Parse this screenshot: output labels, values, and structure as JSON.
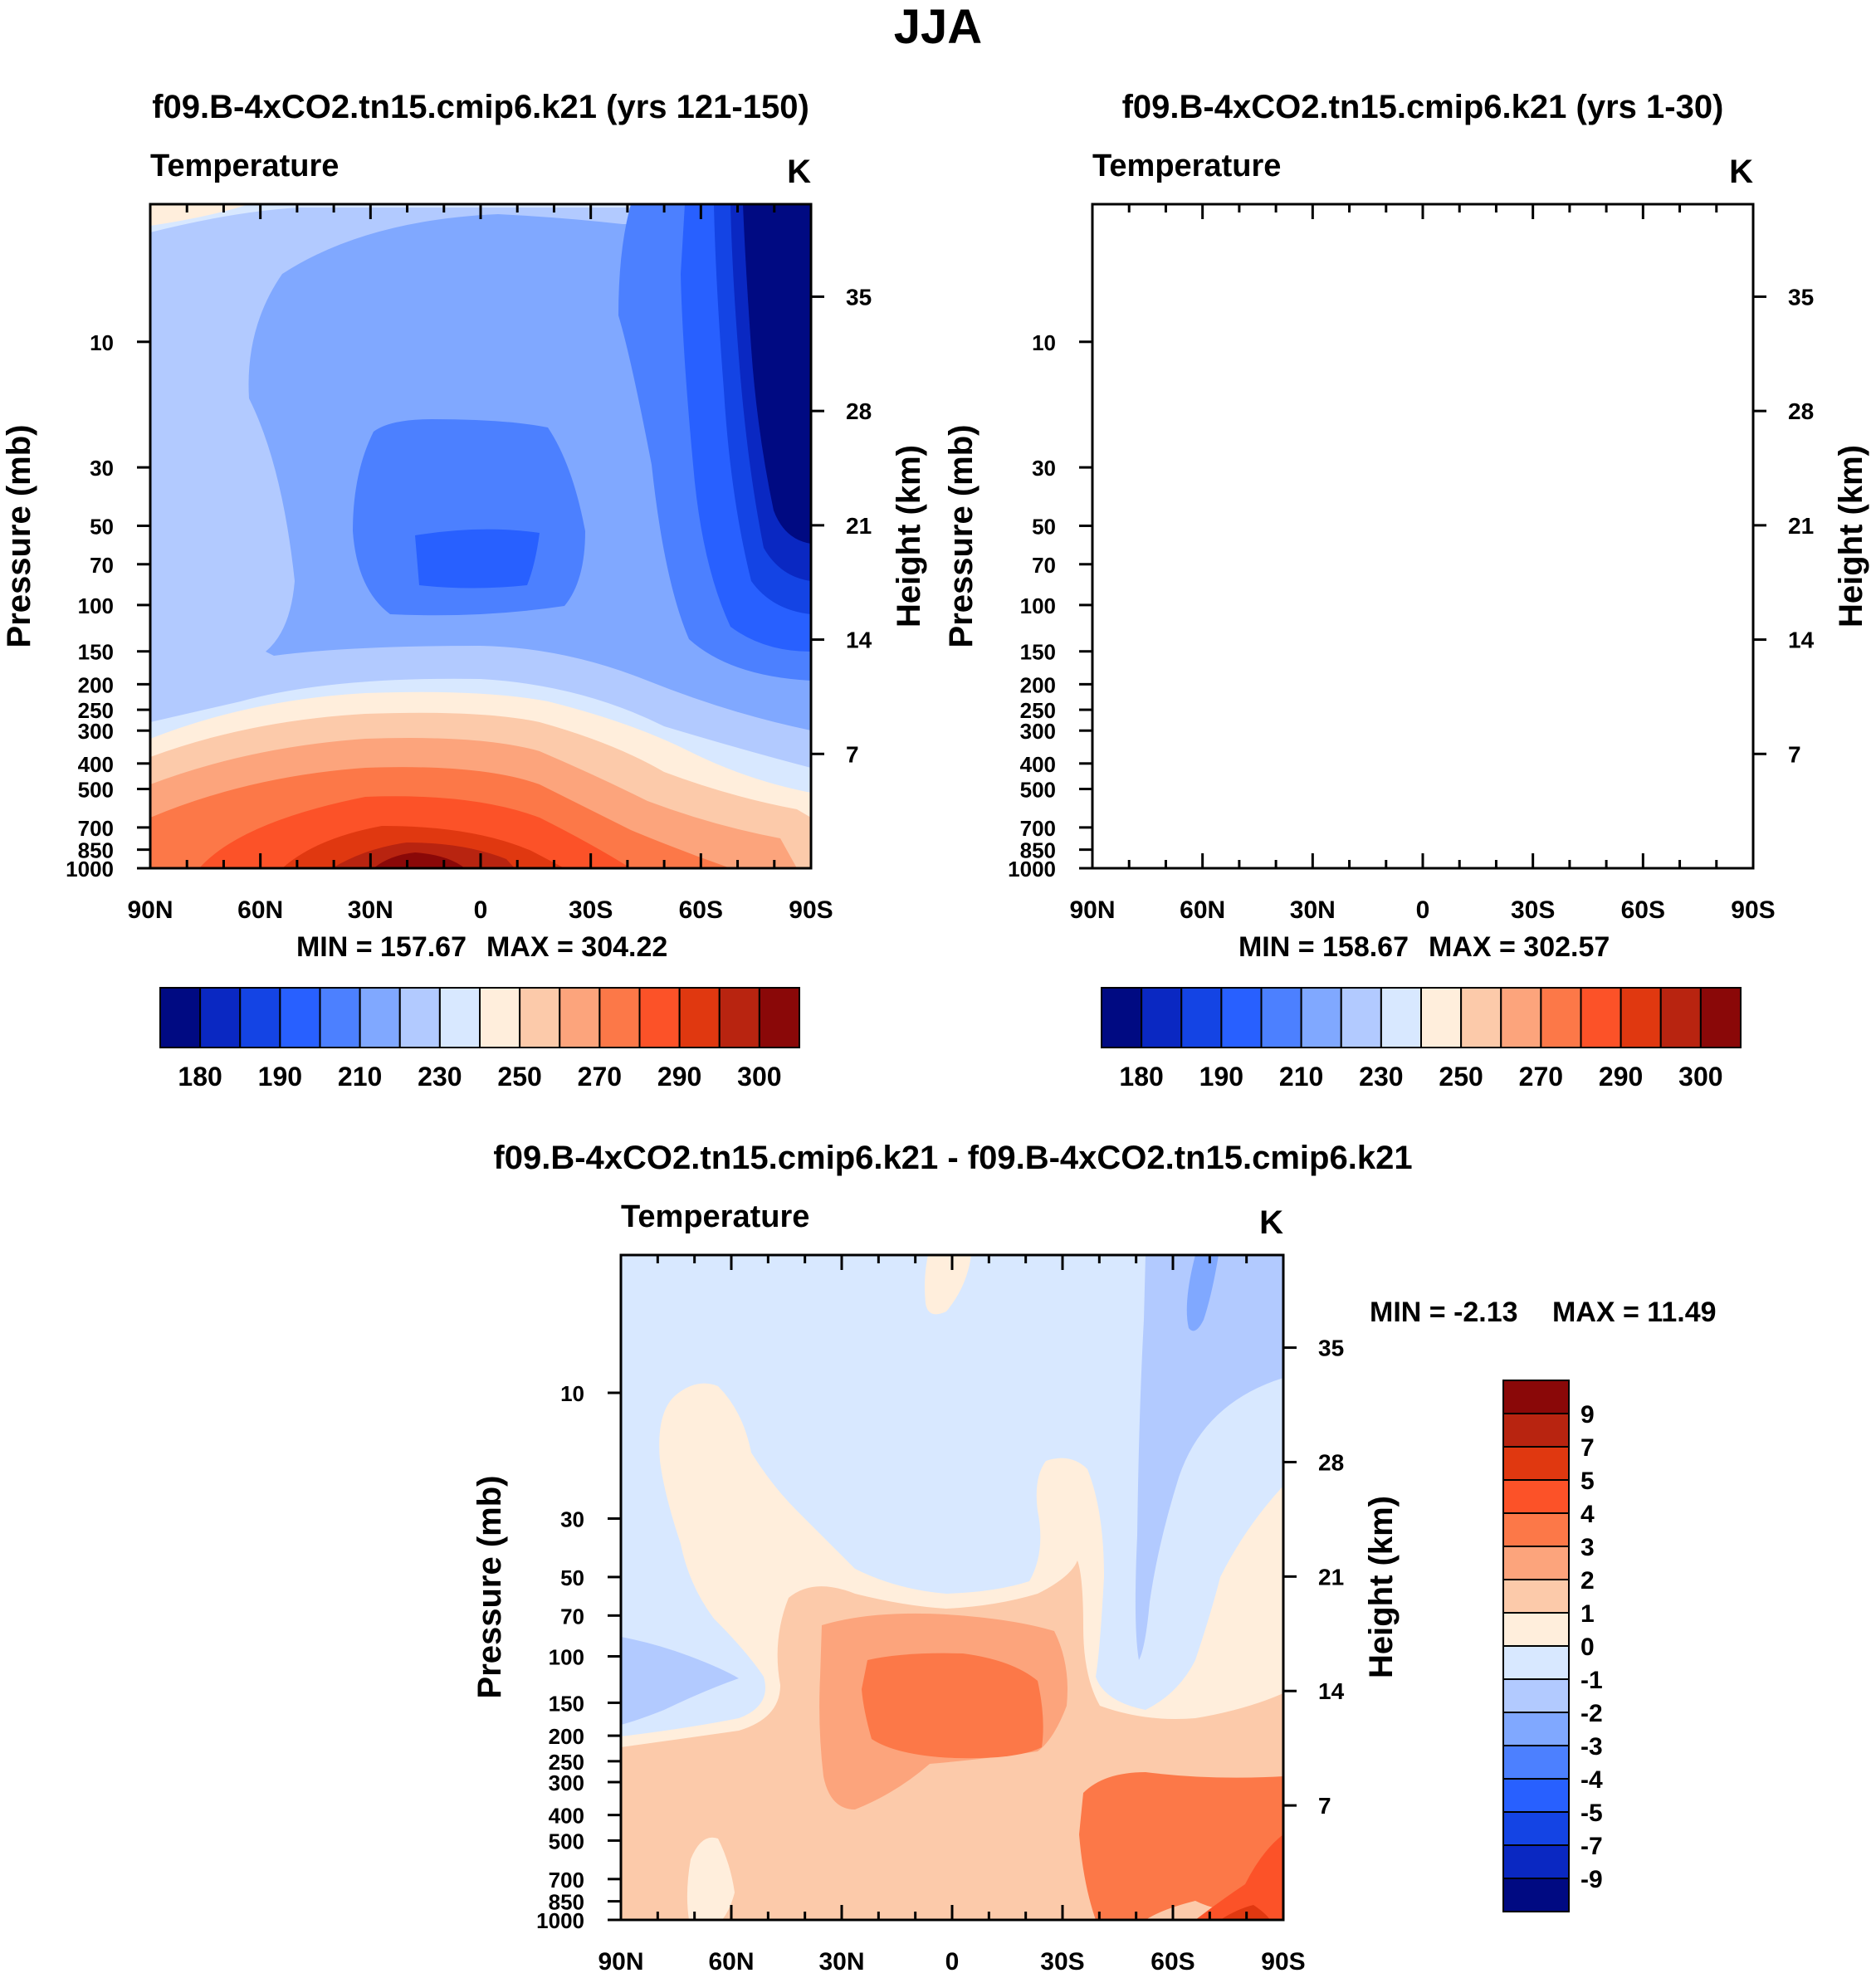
{
  "figure": {
    "title": "JJA"
  },
  "colors": {
    "abs_palette": [
      "#000a82",
      "#0a28c2",
      "#1444e4",
      "#2860ff",
      "#4c80ff",
      "#80a8ff",
      "#b2caff",
      "#d8e8ff",
      "#ffeedc",
      "#fccaaa",
      "#fca47c",
      "#fc7848",
      "#fc5228",
      "#e03810",
      "#b82410",
      "#8a0808"
    ],
    "diff_palette": [
      "#000a82",
      "#0a28c2",
      "#1444e4",
      "#2860ff",
      "#4c80ff",
      "#80a8ff",
      "#b2caff",
      "#d8e8ff",
      "#ffeedc",
      "#fccaaa",
      "#fca47c",
      "#fc7848",
      "#fc5228",
      "#e03810",
      "#b82410",
      "#8a0808"
    ]
  },
  "chart_data": [
    {
      "type": "heatmap",
      "panel": "top-left",
      "title": "f09.B-4xCO2.tn15.cmip6.k21 (yrs 121-150)",
      "variable": "Temperature",
      "units": "K",
      "ylabel_left": "Pressure (mb)",
      "ylabel_right": "Height (km)",
      "x_ticks": [
        "90N",
        "60N",
        "30N",
        "0",
        "30S",
        "60S",
        "90S"
      ],
      "x_range": [
        90,
        -90
      ],
      "pressure_ticks": [
        "10",
        "30",
        "50",
        "70",
        "100",
        "150",
        "200",
        "250",
        "300",
        "400",
        "500",
        "700",
        "850",
        "1000"
      ],
      "pressure_values": [
        10,
        30,
        50,
        70,
        100,
        150,
        200,
        250,
        300,
        400,
        500,
        700,
        850,
        1000
      ],
      "pressure_range": [
        3,
        1000
      ],
      "height_ticks": [
        "7",
        "14",
        "21",
        "28",
        "35"
      ],
      "height_values": [
        7,
        14,
        21,
        28,
        35
      ],
      "min_text": "MIN = 157.67",
      "max_text": "MAX = 304.22",
      "min": 157.67,
      "max": 304.22,
      "contour_levels": [
        180,
        185,
        190,
        200,
        210,
        220,
        230,
        240,
        250,
        260,
        270,
        280,
        290,
        295,
        300
      ],
      "colorbar_labels": [
        "180",
        "190",
        "210",
        "230",
        "250",
        "270",
        "290",
        "300"
      ],
      "colorbar_label_boxes": [
        1,
        3,
        5,
        7,
        9,
        11,
        13,
        15
      ],
      "colorbar_orientation": "horizontal"
    },
    {
      "type": "heatmap",
      "panel": "top-right",
      "title": "f09.B-4xCO2.tn15.cmip6.k21 (yrs 1-30)",
      "variable": "Temperature",
      "units": "K",
      "ylabel_left": "Pressure (mb)",
      "ylabel_right": "Height (km)",
      "x_ticks": [
        "90N",
        "60N",
        "30N",
        "0",
        "30S",
        "60S",
        "90S"
      ],
      "x_range": [
        90,
        -90
      ],
      "pressure_ticks": [
        "10",
        "30",
        "50",
        "70",
        "100",
        "150",
        "200",
        "250",
        "300",
        "400",
        "500",
        "700",
        "850",
        "1000"
      ],
      "pressure_values": [
        10,
        30,
        50,
        70,
        100,
        150,
        200,
        250,
        300,
        400,
        500,
        700,
        850,
        1000
      ],
      "pressure_range": [
        3,
        1000
      ],
      "height_ticks": [
        "7",
        "14",
        "21",
        "28",
        "35"
      ],
      "height_values": [
        7,
        14,
        21,
        28,
        35
      ],
      "min_text": "MIN = 158.67",
      "max_text": "MAX = 302.57",
      "min": 158.67,
      "max": 302.57,
      "contour_levels": [
        180,
        185,
        190,
        200,
        210,
        220,
        230,
        240,
        250,
        260,
        270,
        280,
        290,
        295,
        300
      ],
      "colorbar_labels": [
        "180",
        "190",
        "210",
        "230",
        "250",
        "270",
        "290",
        "300"
      ],
      "colorbar_label_boxes": [
        1,
        3,
        5,
        7,
        9,
        11,
        13,
        15
      ],
      "colorbar_orientation": "horizontal"
    },
    {
      "type": "heatmap",
      "panel": "bottom",
      "title": "f09.B-4xCO2.tn15.cmip6.k21 - f09.B-4xCO2.tn15.cmip6.k21",
      "variable": "Temperature",
      "units": "K",
      "ylabel_left": "Pressure (mb)",
      "ylabel_right": "Height (km)",
      "x_ticks": [
        "90N",
        "60N",
        "30N",
        "0",
        "30S",
        "60S",
        "90S"
      ],
      "x_range": [
        90,
        -90
      ],
      "pressure_ticks": [
        "10",
        "30",
        "50",
        "70",
        "100",
        "150",
        "200",
        "250",
        "300",
        "400",
        "500",
        "700",
        "850",
        "1000"
      ],
      "pressure_values": [
        10,
        30,
        50,
        70,
        100,
        150,
        200,
        250,
        300,
        400,
        500,
        700,
        850,
        1000
      ],
      "pressure_range": [
        3,
        1000
      ],
      "height_ticks": [
        "7",
        "14",
        "21",
        "28",
        "35"
      ],
      "height_values": [
        7,
        14,
        21,
        28,
        35
      ],
      "min_text": "MIN =  -2.13",
      "max_text": "MAX =  11.49",
      "min": -2.13,
      "max": 11.49,
      "contour_levels": [
        -9,
        -7,
        -5,
        -4,
        -3,
        -2,
        -1,
        0,
        1,
        2,
        3,
        4,
        5,
        7,
        9
      ],
      "colorbar_labels": [
        "9",
        "7",
        "5",
        "4",
        "3",
        "2",
        "1",
        "0",
        "-1",
        "-2",
        "-3",
        "-4",
        "-5",
        "-7",
        "-9"
      ],
      "colorbar_orientation": "vertical"
    }
  ]
}
